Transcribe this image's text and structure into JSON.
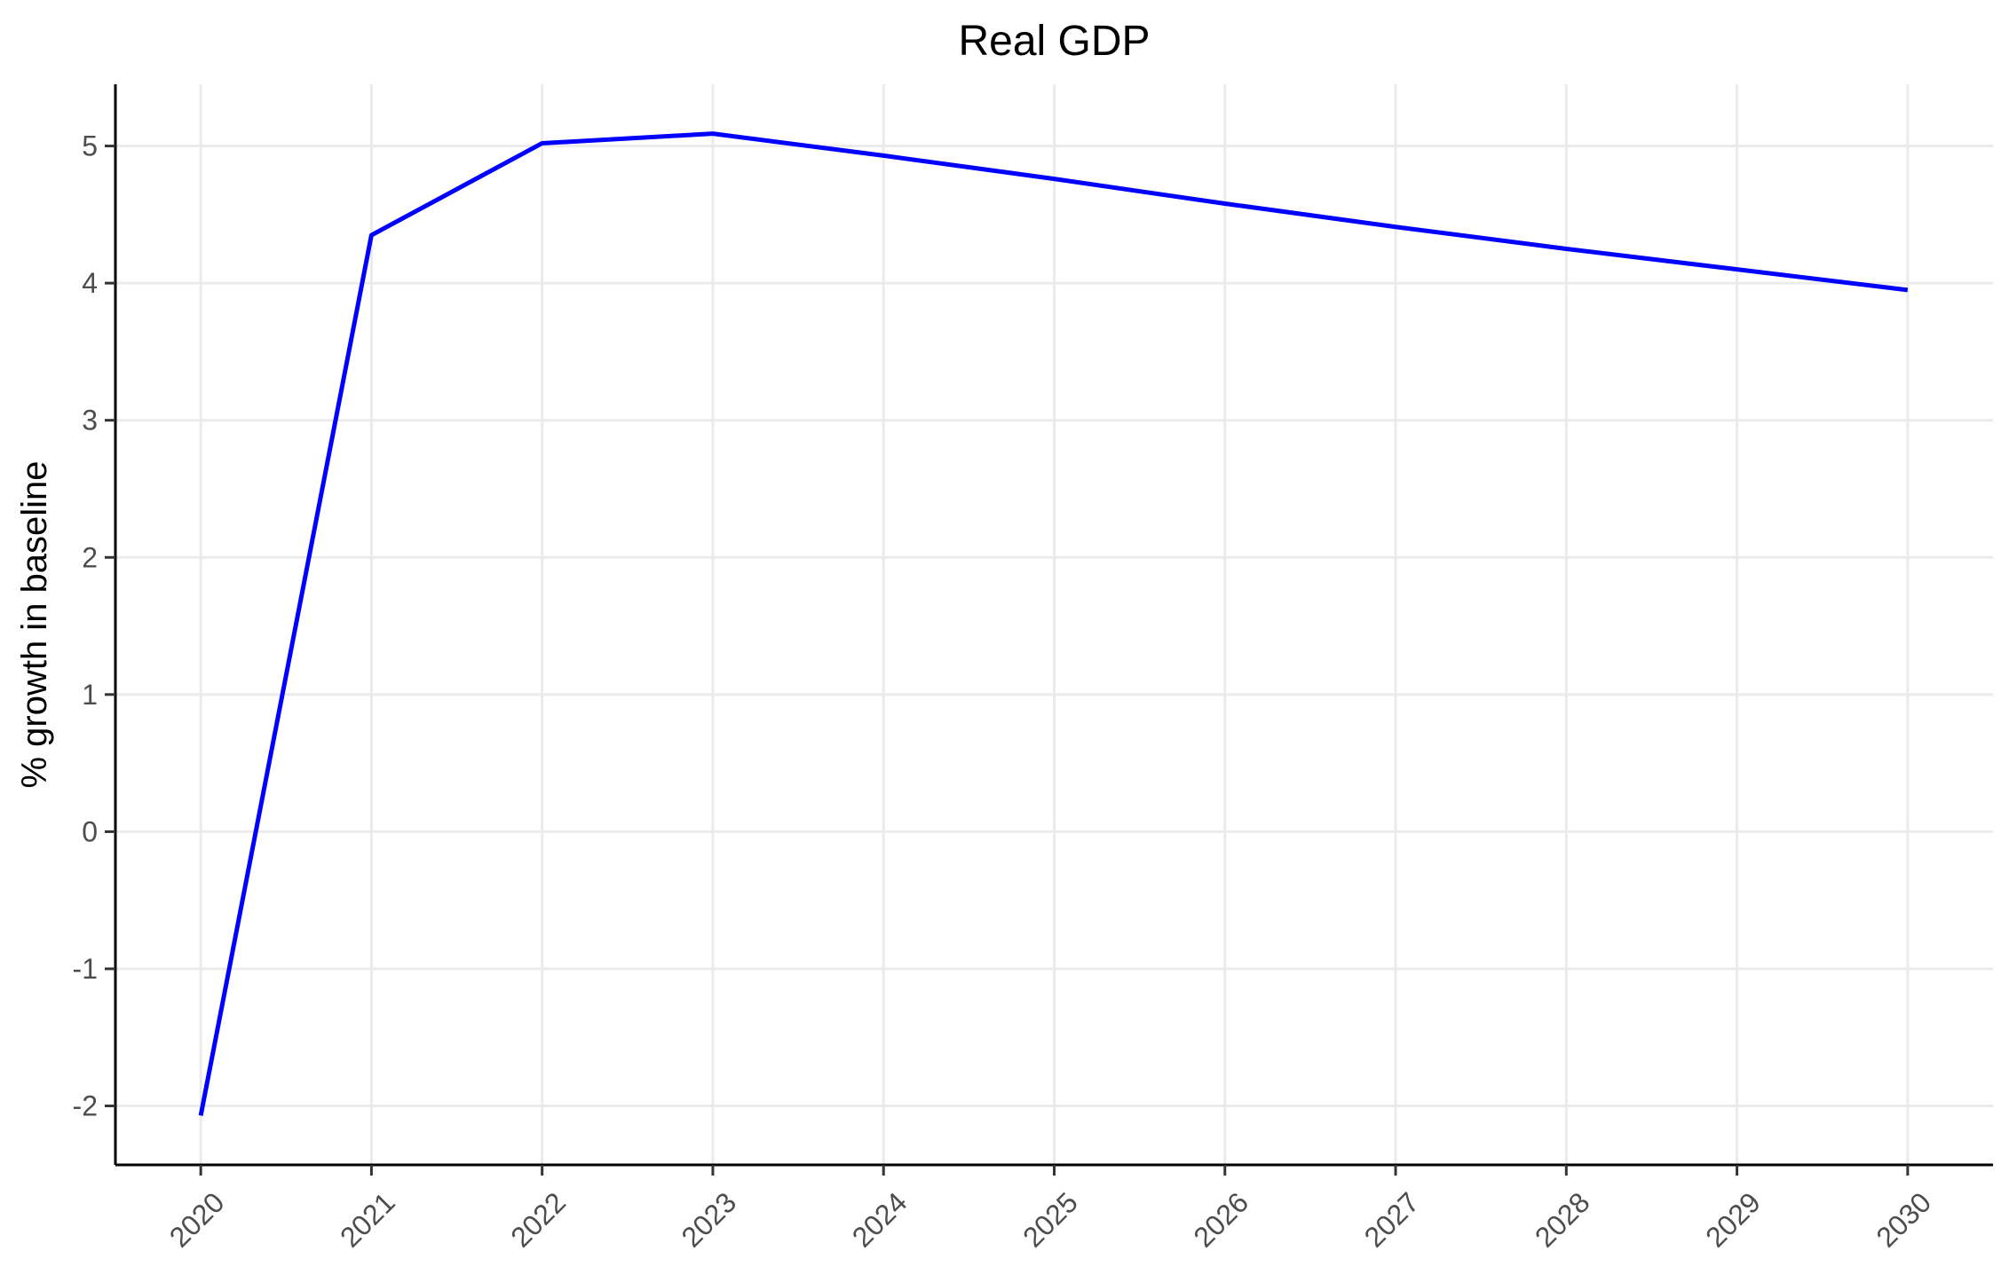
{
  "chart_data": {
    "type": "line",
    "title": "Real GDP",
    "xlabel": "",
    "ylabel": "% growth in baseline",
    "x": [
      2020,
      2021,
      2022,
      2023,
      2024,
      2025,
      2026,
      2027,
      2028,
      2029,
      2030
    ],
    "x_tick_labels": [
      "2020",
      "2021",
      "2022",
      "2023",
      "2024",
      "2025",
      "2026",
      "2027",
      "2028",
      "2029",
      "2030"
    ],
    "y_ticks": [
      -2,
      -1,
      0,
      1,
      2,
      3,
      4,
      5
    ],
    "y_tick_labels": [
      "-2",
      "-1",
      "0",
      "1",
      "2",
      "3",
      "4",
      "5"
    ],
    "xlim": [
      2019.5,
      2030.5
    ],
    "ylim": [
      -2.43,
      5.45
    ],
    "grid": true,
    "legend": "none",
    "series": [
      {
        "color": "#0000ff",
        "values": [
          -2.07,
          4.35,
          5.02,
          5.09,
          4.93,
          4.76,
          4.58,
          4.41,
          4.25,
          4.1,
          3.95
        ]
      }
    ]
  }
}
